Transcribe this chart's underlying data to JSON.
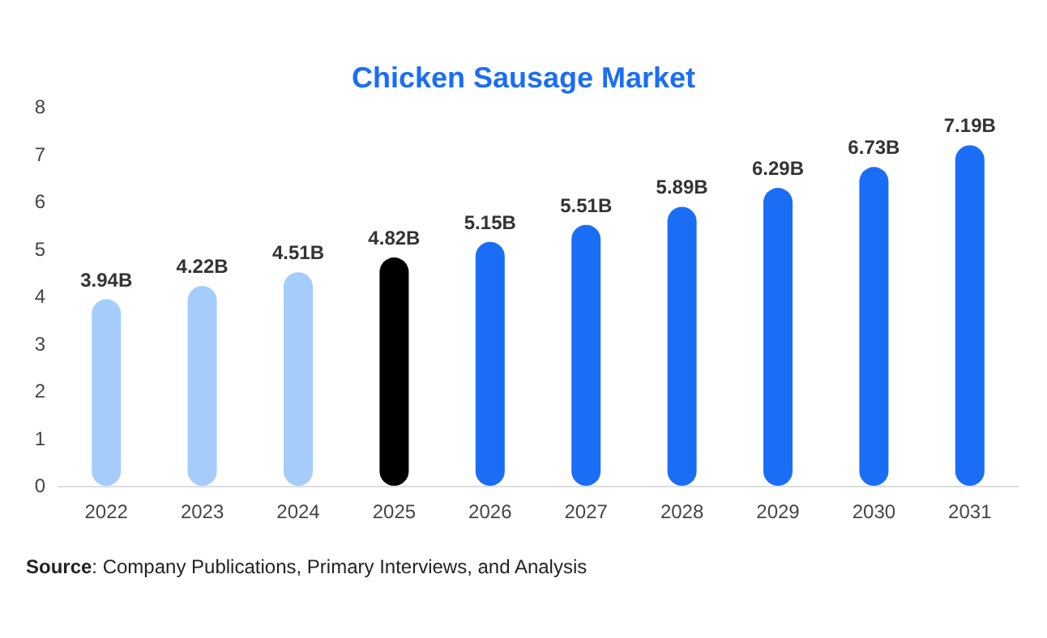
{
  "chart_data": {
    "type": "bar",
    "title": "Chicken Sausage Market",
    "categories": [
      "2022",
      "2023",
      "2024",
      "2025",
      "2026",
      "2027",
      "2028",
      "2029",
      "2030",
      "2031"
    ],
    "values": [
      3.94,
      4.22,
      4.51,
      4.82,
      5.15,
      5.51,
      5.89,
      6.29,
      6.73,
      7.19
    ],
    "value_labels": [
      "3.94B",
      "4.22B",
      "4.51B",
      "4.82B",
      "5.15B",
      "5.51B",
      "5.89B",
      "6.29B",
      "6.73B",
      "7.19B"
    ],
    "colors": [
      "#a4cdfb",
      "#a4cdfb",
      "#a4cdfb",
      "#000000",
      "#1a6ef5",
      "#1a6ef5",
      "#1a6ef5",
      "#1a6ef5",
      "#1a6ef5",
      "#1a6ef5"
    ],
    "ylim": [
      0,
      8
    ],
    "yticks": [
      0,
      1,
      2,
      3,
      4,
      5,
      6,
      7,
      8
    ],
    "grid": false,
    "annotations": [
      "Source: Company Publications, Primary Interviews, and Analysis"
    ]
  }
}
